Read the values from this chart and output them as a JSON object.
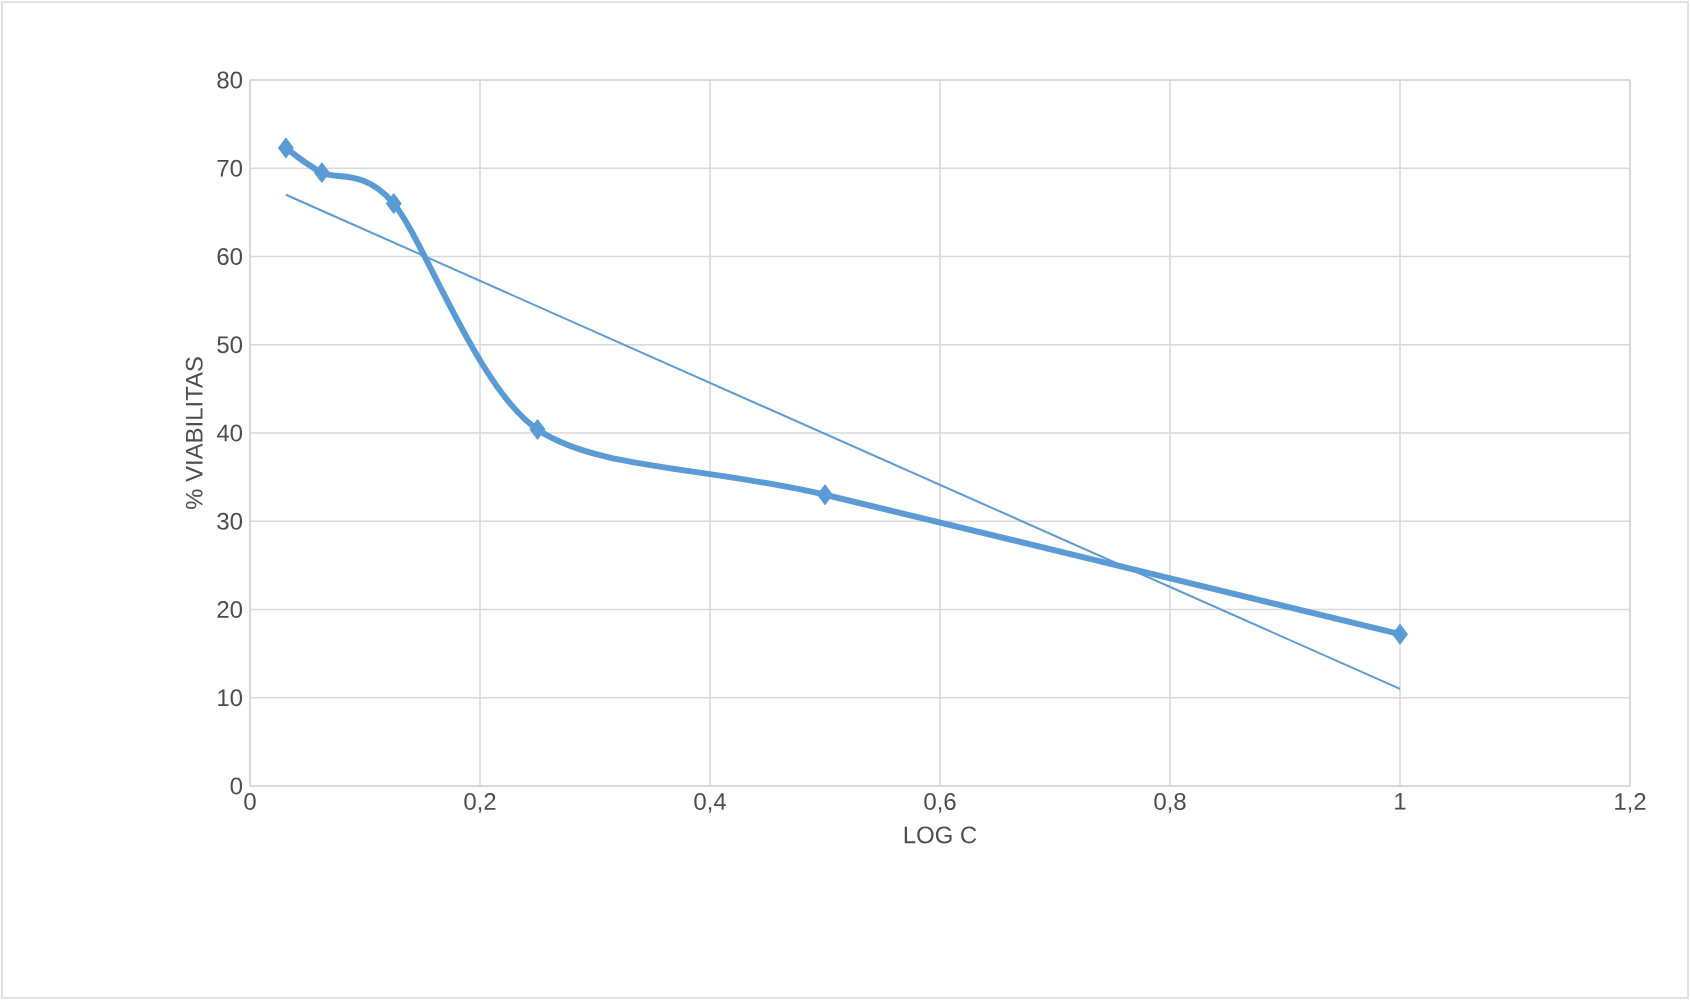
{
  "chart_data": {
    "type": "line",
    "xlabel": "LOG C",
    "ylabel": "% VIABILITAS",
    "xlim": [
      0,
      1.2
    ],
    "xticks": [
      0,
      {
        "value": 0.2,
        "label": "0,2"
      },
      {
        "value": 0.4,
        "label": "0,4"
      },
      {
        "value": 0.6,
        "label": "0,6"
      },
      {
        "value": 0.8,
        "label": "0,8"
      },
      1,
      {
        "value": 1.2,
        "label": "1,2"
      }
    ],
    "ylim": [
      0,
      80
    ],
    "yticks": [
      0,
      10,
      20,
      30,
      40,
      50,
      60,
      70,
      80
    ],
    "grid": true,
    "legend": false,
    "marker": "diamond",
    "series": [
      {
        "color": "#5b9bd5",
        "x": [
          0.03125,
          0.0625,
          0.125,
          0.25,
          0.5,
          1
        ],
        "values": [
          72.3,
          69.5,
          66,
          40.4,
          33,
          17.2
        ]
      },
      {
        "color": "#5b9bd5",
        "marker": "none",
        "x": [
          0.03125,
          1
        ],
        "values": [
          67,
          11
        ]
      }
    ]
  }
}
